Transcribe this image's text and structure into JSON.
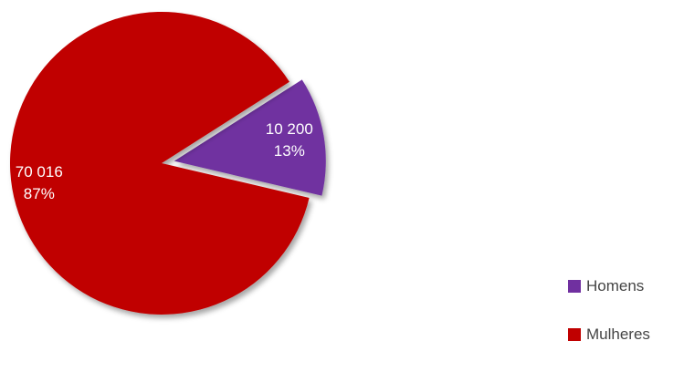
{
  "chart_data": {
    "type": "pie",
    "slices": [
      {
        "name": "Homens",
        "value": 10200,
        "value_label": "10 200",
        "pct_label": "13%",
        "color": "#7030A0",
        "exploded": true
      },
      {
        "name": "Mulheres",
        "value": 70016,
        "value_label": "70 016",
        "pct_label": "87%",
        "color": "#C00000",
        "exploded": false
      }
    ],
    "legend": {
      "position": "bottom-right"
    }
  }
}
